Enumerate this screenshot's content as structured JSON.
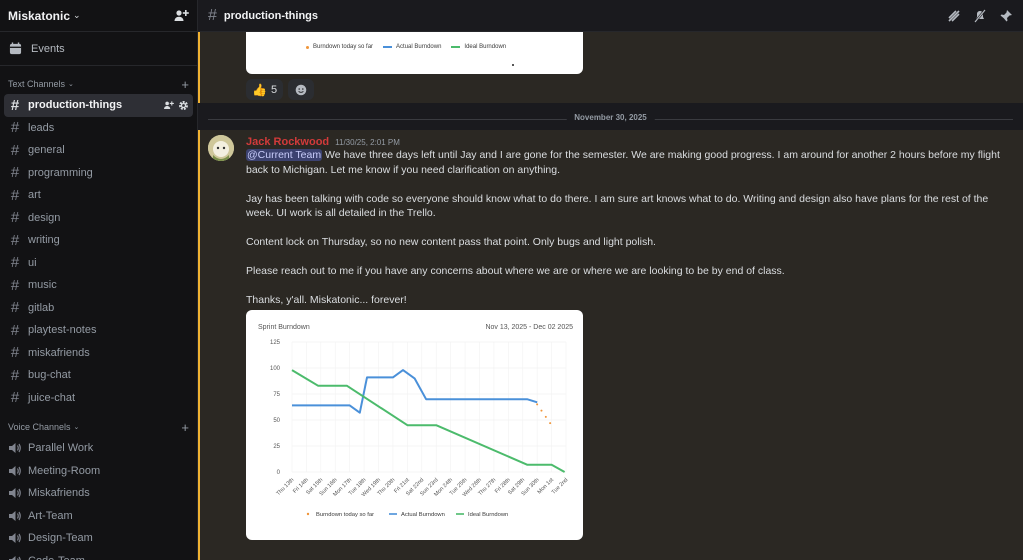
{
  "server": {
    "name": "Miskatonic"
  },
  "sidebar": {
    "events_label": "Events",
    "text_category": "Text Channels",
    "text_channels": [
      {
        "name": "production-things",
        "active": true
      },
      {
        "name": "leads"
      },
      {
        "name": "general"
      },
      {
        "name": "programming"
      },
      {
        "name": "art"
      },
      {
        "name": "design"
      },
      {
        "name": "writing"
      },
      {
        "name": "ui"
      },
      {
        "name": "music"
      },
      {
        "name": "gitlab"
      },
      {
        "name": "playtest-notes"
      },
      {
        "name": "miskafriends"
      },
      {
        "name": "bug-chat"
      },
      {
        "name": "juice-chat"
      }
    ],
    "voice_category": "Voice Channels",
    "voice_channels": [
      {
        "name": "Parallel Work"
      },
      {
        "name": "Meeting-Room"
      },
      {
        "name": "Miskafriends"
      },
      {
        "name": "Art-Team"
      },
      {
        "name": "Design-Team"
      },
      {
        "name": "Code-Team"
      }
    ]
  },
  "topbar": {
    "channel": "production-things"
  },
  "prev_embed": {
    "legend": [
      "Burndown today so far",
      "Actual Burndown",
      "Ideal Burndown"
    ]
  },
  "reactions": {
    "thumbs_count": "5"
  },
  "divider": {
    "date": "November 30, 2025"
  },
  "message": {
    "author": "Jack Rockwood",
    "timestamp": "11/30/25, 2:01 PM",
    "mention": "@Current Team",
    "p1_rest": " We have three days left until Jay and I are gone for the semester. We are making good progress. I am around for another 2 hours before my flight back to Michigan. Let me know if you need clarification on anything.",
    "p2": "Jay has been talking with code so everyone should know what to do there. I am sure art knows what to do. Writing and design also have plans for the rest of the week. UI work is all detailed in the Trello.",
    "p3": "Content lock on Thursday, so no new content pass that point. Only bugs and light polish.",
    "p4": "Please reach out to me if you have any concerns about where we are or where we are looking to be by end of class.",
    "p5": "Thanks, y'all. Miskatonic... forever!"
  },
  "colors": {
    "actual": "#4a90d9",
    "ideal": "#4cbb6c",
    "today": "#f0953a"
  },
  "chart_data": {
    "type": "line",
    "title": "Sprint Burndown",
    "date_range": "Nov 13, 2025 - Dec 02 2025",
    "categories": [
      "Thu 13th",
      "Fri 14th",
      "Sat 15th",
      "Sun 16th",
      "Mon 17th",
      "Tue 18th",
      "Wed 19th",
      "Thu 20th",
      "Fri 21st",
      "Sat 22nd",
      "Sun 23rd",
      "Mon 24th",
      "Tue 25th",
      "Wed 26th",
      "Thu 27th",
      "Fri 28th",
      "Sat 29th",
      "Sun 30th",
      "Mon 1st",
      "Tue 2nd"
    ],
    "ylim": [
      0,
      125
    ],
    "yticks": [
      0,
      25,
      50,
      75,
      100,
      125
    ],
    "series": [
      {
        "name": "Burndown today so far",
        "color": "#f0953a",
        "style": "dots",
        "points": [
          [
            17.0,
            65
          ],
          [
            17.3,
            59
          ],
          [
            17.6,
            53
          ],
          [
            17.9,
            47
          ]
        ]
      },
      {
        "name": "Actual Burndown",
        "color": "#4a90d9",
        "style": "line",
        "points": [
          [
            0,
            64
          ],
          [
            4,
            64
          ],
          [
            4.7,
            57
          ],
          [
            5.2,
            91
          ],
          [
            7,
            91
          ],
          [
            7.7,
            98
          ],
          [
            8.5,
            90
          ],
          [
            9.3,
            70
          ],
          [
            16.3,
            70
          ],
          [
            17,
            67
          ]
        ]
      },
      {
        "name": "Ideal Burndown",
        "color": "#4cbb6c",
        "style": "line",
        "points": [
          [
            0,
            98
          ],
          [
            1.8,
            83
          ],
          [
            3.8,
            83
          ],
          [
            8,
            45
          ],
          [
            10,
            45
          ],
          [
            16.3,
            7
          ],
          [
            18,
            7
          ],
          [
            18.9,
            0
          ]
        ]
      }
    ],
    "legend": [
      "Burndown today so far",
      "Actual Burndown",
      "Ideal Burndown"
    ],
    "legend_position": "bottom",
    "grid": true
  }
}
